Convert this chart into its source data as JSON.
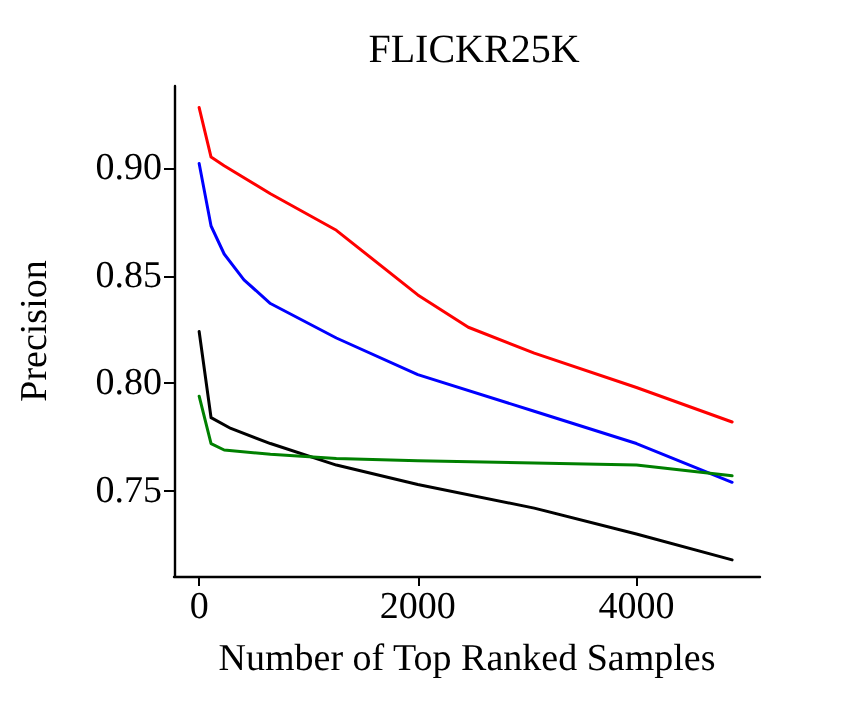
{
  "chart_data": {
    "type": "line",
    "title": "FLICKR25K",
    "xlabel": "Number of Top Ranked Samples",
    "ylabel": "Precision",
    "xlim": [
      -230,
      5130
    ],
    "xticks": [
      0,
      2000,
      4000
    ],
    "ylim": [
      0.7105,
      0.938
    ],
    "yticks": [
      {
        "value": 0.75,
        "label": "0.75"
      },
      {
        "value": 0.8,
        "label": "0.80"
      },
      {
        "value": 0.85,
        "label": "0.85"
      },
      {
        "value": 0.9,
        "label": "0.90"
      }
    ],
    "grid": false,
    "marker": "none",
    "line_style": "solid",
    "series": [
      {
        "color": "#ff0000",
        "x": [
          0,
          109,
          229,
          652,
          1255,
          2000,
          2462,
          3065,
          4000,
          4875
        ],
        "values": [
          0.928,
          0.905,
          0.901,
          0.888,
          0.871,
          0.841,
          0.826,
          0.814,
          0.798,
          0.782
        ]
      },
      {
        "color": "#0000ff",
        "x": [
          0,
          109,
          229,
          410,
          652,
          1255,
          2000,
          3065,
          4000,
          4875
        ],
        "values": [
          0.902,
          0.873,
          0.86,
          0.848,
          0.837,
          0.821,
          0.804,
          0.787,
          0.772,
          0.754
        ]
      },
      {
        "color": "#000000",
        "x": [
          0,
          109,
          290,
          652,
          1255,
          2000,
          3065,
          4000,
          4875
        ],
        "values": [
          0.824,
          0.784,
          0.779,
          0.772,
          0.762,
          0.753,
          0.742,
          0.73,
          0.718
        ]
      },
      {
        "color": "#008000",
        "x": [
          0,
          109,
          229,
          652,
          1255,
          2000,
          3065,
          4000,
          4875
        ],
        "values": [
          0.794,
          0.772,
          0.769,
          0.767,
          0.765,
          0.764,
          0.763,
          0.762,
          0.757
        ]
      }
    ]
  }
}
